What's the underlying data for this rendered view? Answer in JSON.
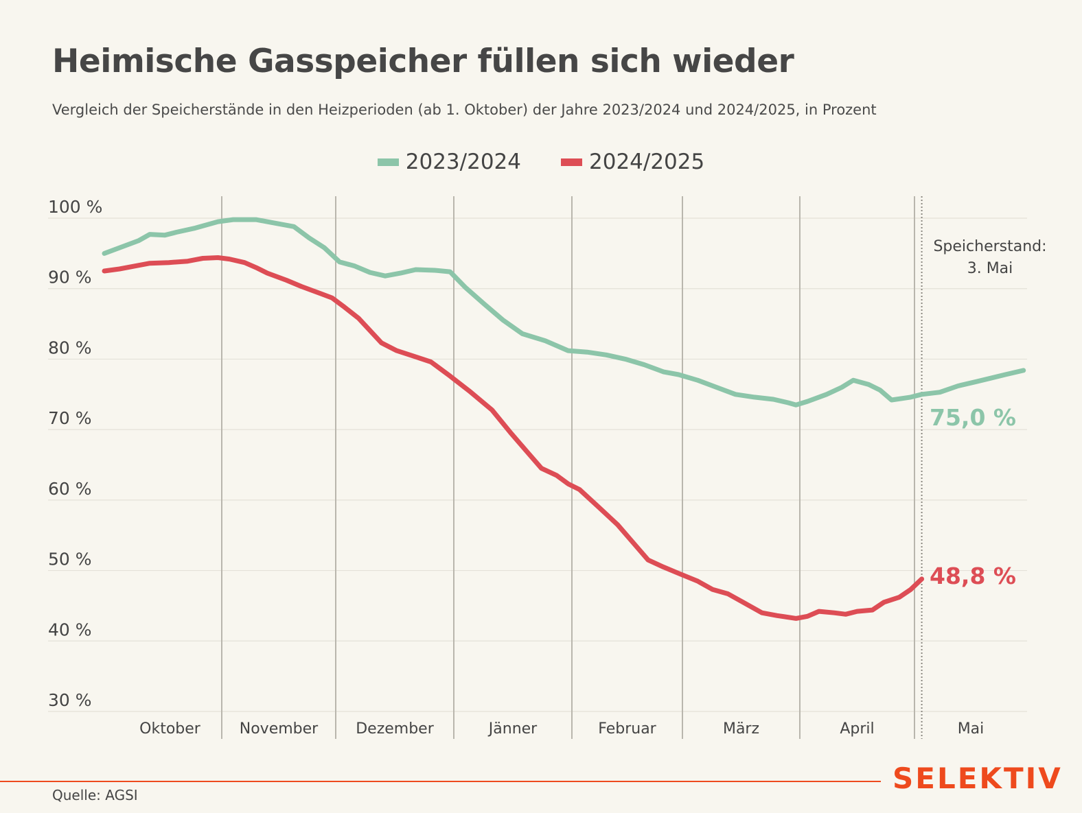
{
  "header": {
    "title": "Heimische Gasspeicher füllen sich wieder",
    "subtitle": "Vergleich der Speicherstände in den Heizperioden (ab 1. Oktober) der Jahre 2023/2024 und 2024/2025, in Prozent"
  },
  "legend": {
    "item1": "2023/2024",
    "item2": "2024/2025"
  },
  "annotation": {
    "line1": "Speicherstand:",
    "line2": "3. Mai"
  },
  "value_labels": {
    "s2023": "75,0 %",
    "s2024": "48,8 %"
  },
  "footer": {
    "source": "Quelle: AGSI",
    "brand": "SELEKTIV"
  },
  "colors": {
    "s2023": "#8cc5a9",
    "s2024": "#dd4d55",
    "brand": "#ee4a1d",
    "background": "#f8f6ef"
  },
  "chart_data": {
    "type": "line",
    "ylim": [
      30,
      100
    ],
    "yticks": [
      {
        "value": 100,
        "label": "100 %"
      },
      {
        "value": 90,
        "label": "90 %"
      },
      {
        "value": 80,
        "label": "80 %"
      },
      {
        "value": 70,
        "label": "70 %"
      },
      {
        "value": 60,
        "label": "60 %"
      },
      {
        "value": 50,
        "label": "50 %"
      },
      {
        "value": 40,
        "label": "40 %"
      },
      {
        "value": 30,
        "label": "30 %"
      }
    ],
    "months": [
      {
        "label": "Oktober",
        "days": 31
      },
      {
        "label": "November",
        "days": 30
      },
      {
        "label": "Dezember",
        "days": 31
      },
      {
        "label": "Jänner",
        "days": 31
      },
      {
        "label": "Februar",
        "days": 29
      },
      {
        "label": "März",
        "days": 31
      },
      {
        "label": "April",
        "days": 30
      },
      {
        "label": "Mai",
        "days": 31
      }
    ],
    "marker_date": "3. Mai",
    "grid": true,
    "legend_position": "top-center",
    "series": [
      {
        "name": "2023/2024",
        "color": "#8cc5a9",
        "points": [
          [
            "01.10.",
            95.0
          ],
          [
            "05.10.",
            95.8
          ],
          [
            "10.10.",
            96.8
          ],
          [
            "13.10.",
            97.7
          ],
          [
            "17.10.",
            97.6
          ],
          [
            "20.10.",
            98.0
          ],
          [
            "25.10.",
            98.6
          ],
          [
            "31.10.",
            99.5
          ],
          [
            "04.11.",
            99.8
          ],
          [
            "10.11.",
            99.8
          ],
          [
            "14.11.",
            99.4
          ],
          [
            "20.11.",
            98.8
          ],
          [
            "24.11.",
            97.2
          ],
          [
            "28.11.",
            95.8
          ],
          [
            "02.12.",
            93.8
          ],
          [
            "06.12.",
            93.2
          ],
          [
            "10.12.",
            92.3
          ],
          [
            "14.12.",
            91.8
          ],
          [
            "18.12.",
            92.2
          ],
          [
            "22.12.",
            92.7
          ],
          [
            "27.12.",
            92.6
          ],
          [
            "31.12.",
            92.4
          ],
          [
            "04.01.",
            90.2
          ],
          [
            "09.01.",
            87.8
          ],
          [
            "14.01.",
            85.5
          ],
          [
            "19.01.",
            83.6
          ],
          [
            "25.01.",
            82.6
          ],
          [
            "31.01.",
            81.2
          ],
          [
            "05.02.",
            81.0
          ],
          [
            "10.02.",
            80.6
          ],
          [
            "15.02.",
            80.0
          ],
          [
            "20.02.",
            79.2
          ],
          [
            "25.02.",
            78.2
          ],
          [
            "29.02.",
            77.8
          ],
          [
            "05.03.",
            77.0
          ],
          [
            "10.03.",
            76.0
          ],
          [
            "15.03.",
            75.0
          ],
          [
            "20.03.",
            74.6
          ],
          [
            "25.03.",
            74.3
          ],
          [
            "29.03.",
            73.8
          ],
          [
            "31.03.",
            73.5
          ],
          [
            "03.04.",
            74.0
          ],
          [
            "08.04.",
            75.0
          ],
          [
            "12.04.",
            76.0
          ],
          [
            "15.04.",
            77.0
          ],
          [
            "19.04.",
            76.4
          ],
          [
            "22.04.",
            75.6
          ],
          [
            "25.04.",
            74.2
          ],
          [
            "30.04.",
            74.6
          ],
          [
            "03.05.",
            75.0
          ],
          [
            "08.05.",
            75.3
          ],
          [
            "13.05.",
            76.2
          ],
          [
            "18.05.",
            76.8
          ],
          [
            "22.05.",
            77.3
          ],
          [
            "26.05.",
            77.8
          ],
          [
            "31.05.",
            78.4
          ]
        ]
      },
      {
        "name": "2024/2025",
        "color": "#dd4d55",
        "points": [
          [
            "01.10.",
            92.5
          ],
          [
            "05.10.",
            92.8
          ],
          [
            "10.10.",
            93.3
          ],
          [
            "13.10.",
            93.6
          ],
          [
            "18.10.",
            93.7
          ],
          [
            "23.10.",
            93.9
          ],
          [
            "27.10.",
            94.3
          ],
          [
            "31.10.",
            94.4
          ],
          [
            "03.11.",
            94.2
          ],
          [
            "07.11.",
            93.7
          ],
          [
            "10.11.",
            93.0
          ],
          [
            "13.11.",
            92.2
          ],
          [
            "18.11.",
            91.2
          ],
          [
            "22.11.",
            90.3
          ],
          [
            "27.11.",
            89.3
          ],
          [
            "30.11.",
            88.7
          ],
          [
            "03.12.",
            87.5
          ],
          [
            "07.12.",
            85.8
          ],
          [
            "13.12.",
            82.3
          ],
          [
            "17.12.",
            81.2
          ],
          [
            "21.12.",
            80.5
          ],
          [
            "26.12.",
            79.6
          ],
          [
            "31.12.",
            77.6
          ],
          [
            "05.01.",
            75.5
          ],
          [
            "11.01.",
            72.8
          ],
          [
            "16.01.",
            69.5
          ],
          [
            "20.01.",
            67.0
          ],
          [
            "24.01.",
            64.5
          ],
          [
            "28.01.",
            63.5
          ],
          [
            "31.01.",
            62.3
          ],
          [
            "03.02.",
            61.5
          ],
          [
            "08.02.",
            59.0
          ],
          [
            "13.02.",
            56.5
          ],
          [
            "17.02.",
            54.0
          ],
          [
            "21.02.",
            51.5
          ],
          [
            "25.02.",
            50.5
          ],
          [
            "29.02.",
            49.6
          ],
          [
            "05.03.",
            48.5
          ],
          [
            "09.03.",
            47.3
          ],
          [
            "13.03.",
            46.7
          ],
          [
            "17.03.",
            45.5
          ],
          [
            "22.03.",
            44.0
          ],
          [
            "26.03.",
            43.6
          ],
          [
            "31.03.",
            43.2
          ],
          [
            "03.04.",
            43.5
          ],
          [
            "06.04.",
            44.2
          ],
          [
            "10.04.",
            44.0
          ],
          [
            "13.04.",
            43.8
          ],
          [
            "16.04.",
            44.2
          ],
          [
            "20.04.",
            44.4
          ],
          [
            "23.04.",
            45.5
          ],
          [
            "27.04.",
            46.2
          ],
          [
            "30.04.",
            47.3
          ],
          [
            "03.05.",
            48.8
          ]
        ]
      }
    ]
  }
}
